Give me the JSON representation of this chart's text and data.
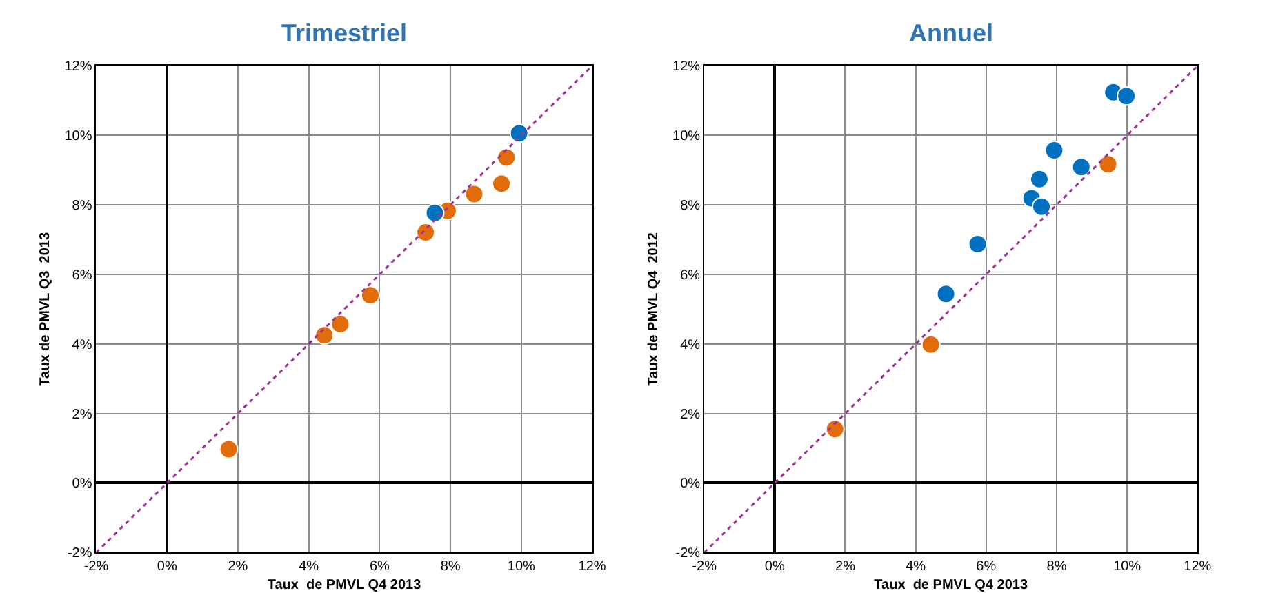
{
  "chart_data": [
    {
      "type": "scatter",
      "title": "Trimestriel",
      "xlabel": "Taux  de PMVL Q4 2013",
      "ylabel": "Taux de PMVL Q3  2013",
      "series": [
        {
          "color": "#e36c0a",
          "x": [
            1.74,
            4.44,
            4.89,
            5.74,
            7.3,
            7.92,
            8.67,
            9.44,
            9.58
          ],
          "values": [
            0.97,
            4.25,
            4.57,
            5.4,
            7.21,
            7.83,
            8.31,
            8.61,
            9.36
          ]
        },
        {
          "color": "#0070c0",
          "x": [
            7.56,
            9.94
          ],
          "values": [
            7.77,
            10.06
          ]
        },
        {
          "type": "line",
          "color": "#a0309a",
          "line_style": "dotted",
          "marker": "none",
          "x": [
            -2,
            12
          ],
          "values": [
            -2,
            12
          ]
        }
      ],
      "marker": "circle",
      "grid": true,
      "xlim": [
        -2,
        12
      ],
      "ylim": [
        -2,
        12
      ],
      "xticks": [
        {
          "value": -2,
          "label": "-2%"
        },
        {
          "value": 0,
          "label": "0%"
        },
        {
          "value": 2,
          "label": "2%"
        },
        {
          "value": 4,
          "label": "4%"
        },
        {
          "value": 6,
          "label": "6%"
        },
        {
          "value": 8,
          "label": "8%"
        },
        {
          "value": 10,
          "label": "10%"
        },
        {
          "value": 12,
          "label": "12%"
        }
      ],
      "yticks": [
        {
          "value": -2,
          "label": "-2%"
        },
        {
          "value": 0,
          "label": "0%"
        },
        {
          "value": 2,
          "label": "2%"
        },
        {
          "value": 4,
          "label": "4%"
        },
        {
          "value": 6,
          "label": "6%"
        },
        {
          "value": 8,
          "label": "8%"
        },
        {
          "value": 10,
          "label": "10%"
        },
        {
          "value": 12,
          "label": "12%"
        }
      ]
    },
    {
      "type": "scatter",
      "title": "Annuel",
      "xlabel": "Taux  de PMVL Q4 2013",
      "ylabel": "Taux de PMVL Q4  2012",
      "series": [
        {
          "color": "#e36c0a",
          "x": [
            1.71,
            4.43,
            9.46
          ],
          "values": [
            1.55,
            3.98,
            9.17
          ]
        },
        {
          "color": "#0070c0",
          "x": [
            4.86,
            5.76,
            7.29,
            7.57,
            7.51,
            7.93,
            8.7,
            9.61,
            9.98
          ],
          "values": [
            5.44,
            6.87,
            8.19,
            7.95,
            8.74,
            9.57,
            9.09,
            11.24,
            11.13
          ]
        },
        {
          "type": "line",
          "color": "#a0309a",
          "line_style": "dotted",
          "marker": "none",
          "x": [
            -2,
            12
          ],
          "values": [
            -2,
            12
          ]
        }
      ],
      "marker": "circle",
      "grid": true,
      "xlim": [
        -2,
        12
      ],
      "ylim": [
        -2,
        12
      ],
      "xticks": [
        {
          "value": -2,
          "label": "-2%"
        },
        {
          "value": 0,
          "label": "0%"
        },
        {
          "value": 2,
          "label": "2%"
        },
        {
          "value": 4,
          "label": "4%"
        },
        {
          "value": 6,
          "label": "6%"
        },
        {
          "value": 8,
          "label": "8%"
        },
        {
          "value": 10,
          "label": "10%"
        },
        {
          "value": 12,
          "label": "12%"
        }
      ],
      "yticks": [
        {
          "value": -2,
          "label": "-2%"
        },
        {
          "value": 0,
          "label": "0%"
        },
        {
          "value": 2,
          "label": "2%"
        },
        {
          "value": 4,
          "label": "4%"
        },
        {
          "value": 6,
          "label": "6%"
        },
        {
          "value": 8,
          "label": "8%"
        },
        {
          "value": 10,
          "label": "10%"
        },
        {
          "value": 12,
          "label": "12%"
        }
      ]
    }
  ]
}
